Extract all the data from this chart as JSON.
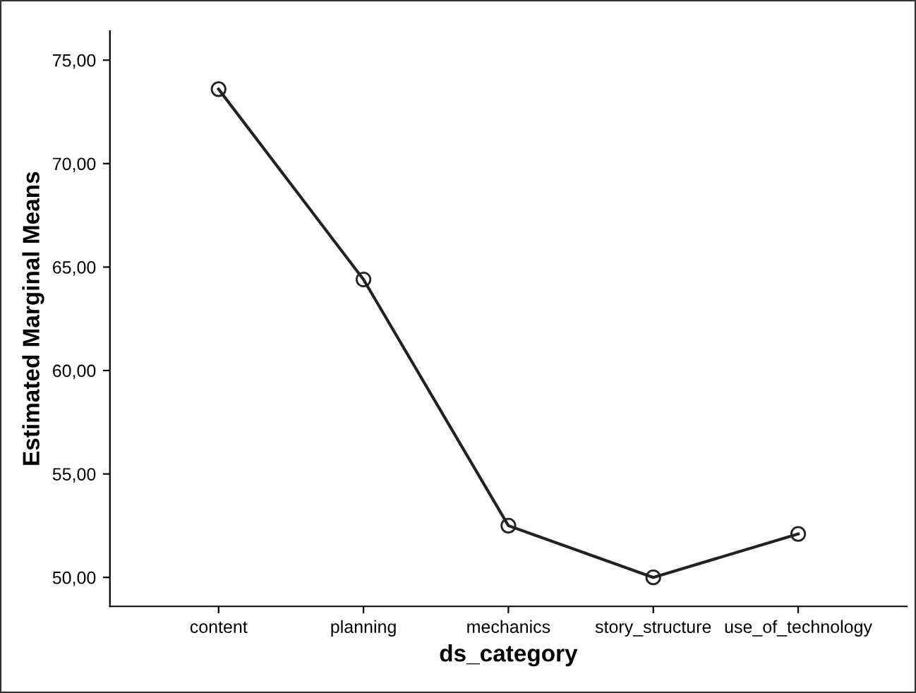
{
  "chart_data": {
    "type": "line",
    "xlabel": "ds_category",
    "ylabel": "Estimated Marginal Means",
    "categories": [
      "content",
      "planning",
      "mechanics",
      "story_structure",
      "use_of_technology"
    ],
    "series": [
      {
        "color": "#222222",
        "values": [
          73.6,
          64.4,
          52.5,
          50.0,
          52.1
        ]
      }
    ],
    "ylim": [
      48.6,
      76.4
    ],
    "yticks": [
      {
        "value": 50,
        "label": "50,00"
      },
      {
        "value": 55,
        "label": "55,00"
      },
      {
        "value": 60,
        "label": "60,00"
      },
      {
        "value": 65,
        "label": "65,00"
      },
      {
        "value": 70,
        "label": "70,00"
      },
      {
        "value": 75,
        "label": "75,00"
      }
    ],
    "grid": false,
    "marker": "circle",
    "line_style": "solid",
    "legend": false
  }
}
